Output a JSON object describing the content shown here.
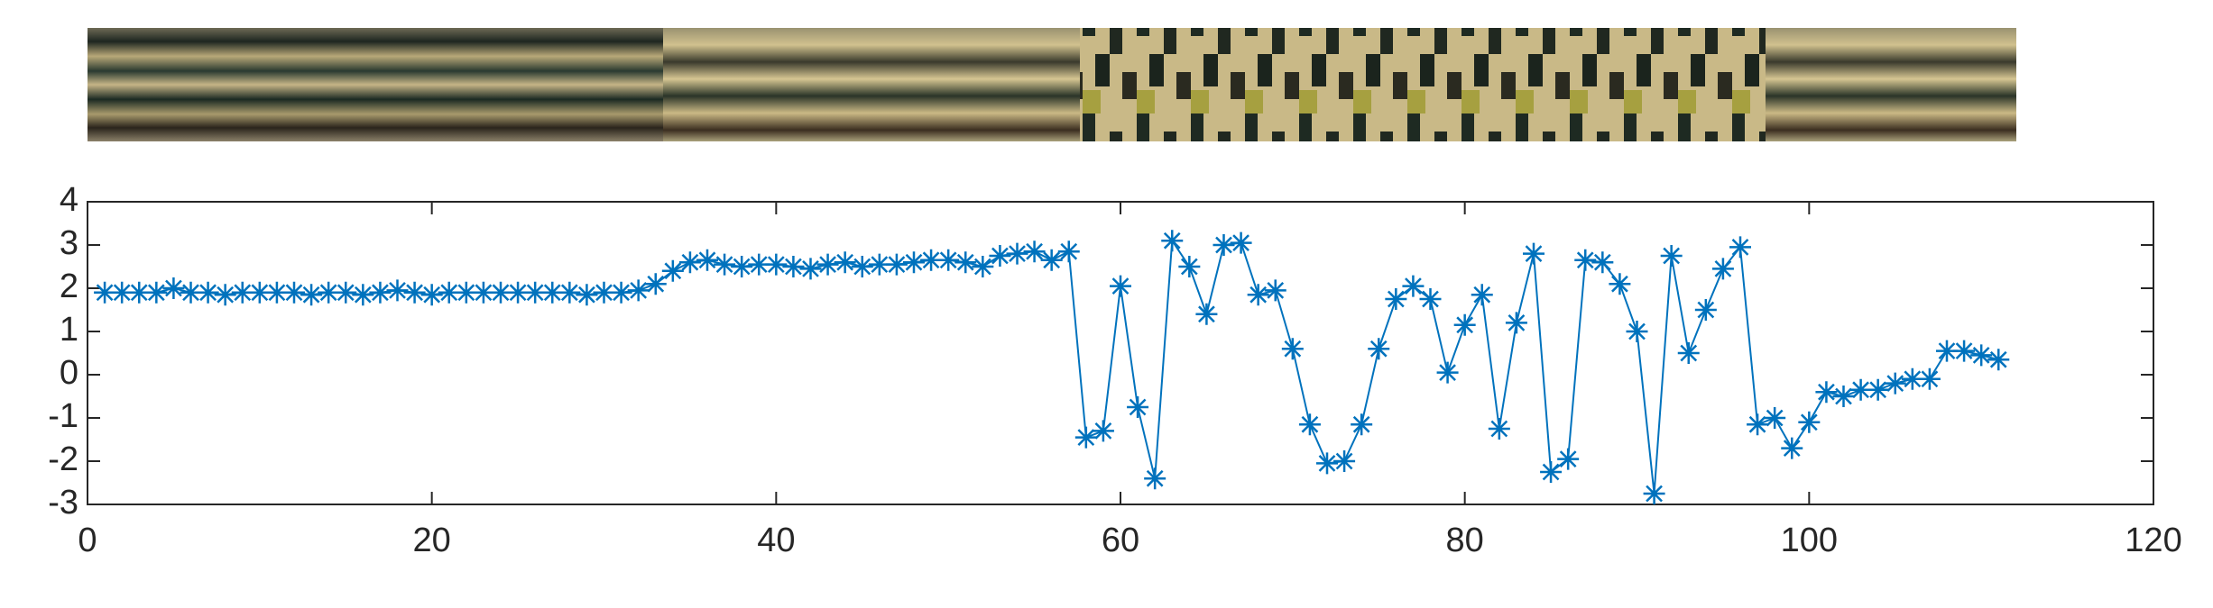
{
  "chart_data": {
    "type": "line",
    "x": [
      1,
      2,
      3,
      4,
      5,
      6,
      7,
      8,
      9,
      10,
      11,
      12,
      13,
      14,
      15,
      16,
      17,
      18,
      19,
      20,
      21,
      22,
      23,
      24,
      25,
      26,
      27,
      28,
      29,
      30,
      31,
      32,
      33,
      34,
      35,
      36,
      37,
      38,
      39,
      40,
      41,
      42,
      43,
      44,
      45,
      46,
      47,
      48,
      49,
      50,
      51,
      52,
      53,
      54,
      55,
      56,
      57,
      58,
      59,
      60,
      61,
      62,
      63,
      64,
      65,
      66,
      67,
      68,
      69,
      70,
      71,
      72,
      73,
      74,
      75,
      76,
      77,
      78,
      79,
      80,
      81,
      82,
      83,
      84,
      85,
      86,
      87,
      88,
      89,
      90,
      91,
      92,
      93,
      94,
      95,
      96,
      97,
      98,
      99,
      100,
      101,
      102,
      103,
      104,
      105,
      106,
      107,
      108,
      109,
      110,
      111
    ],
    "series": [
      {
        "name": "series",
        "color": "#0072bd",
        "values": [
          1.9,
          1.9,
          1.9,
          1.9,
          2.0,
          1.9,
          1.9,
          1.85,
          1.9,
          1.9,
          1.9,
          1.9,
          1.85,
          1.9,
          1.9,
          1.85,
          1.9,
          1.95,
          1.9,
          1.85,
          1.9,
          1.9,
          1.9,
          1.9,
          1.9,
          1.9,
          1.9,
          1.9,
          1.85,
          1.9,
          1.9,
          1.95,
          2.1,
          2.4,
          2.6,
          2.65,
          2.55,
          2.5,
          2.55,
          2.55,
          2.5,
          2.45,
          2.55,
          2.6,
          2.5,
          2.55,
          2.55,
          2.6,
          2.65,
          2.65,
          2.6,
          2.5,
          2.75,
          2.8,
          2.85,
          2.65,
          2.85,
          -1.45,
          -1.3,
          2.05,
          -0.75,
          -2.4,
          3.1,
          2.5,
          1.4,
          3.0,
          3.05,
          1.85,
          1.95,
          0.6,
          -1.15,
          -2.05,
          -2.0,
          -1.15,
          0.6,
          1.75,
          2.05,
          1.75,
          0.05,
          1.15,
          1.85,
          -1.25,
          1.2,
          2.8,
          -2.25,
          -1.95,
          2.65,
          2.6,
          2.1,
          1.0,
          -2.75,
          2.75,
          0.5,
          1.5,
          2.45,
          2.95,
          -1.15,
          -1.0,
          -1.7,
          -1.1,
          -0.4,
          -0.5,
          -0.35,
          -0.35,
          -0.2,
          -0.1,
          -0.1,
          0.55,
          0.55,
          0.45,
          0.35
        ]
      }
    ],
    "xlim": [
      0,
      120
    ],
    "xticks": [
      0,
      20,
      40,
      60,
      80,
      100,
      120
    ],
    "ylim": [
      -3,
      4
    ],
    "yticks": [
      -3,
      -2,
      -1,
      0,
      1,
      2,
      3,
      4
    ],
    "marker": "asterisk"
  }
}
